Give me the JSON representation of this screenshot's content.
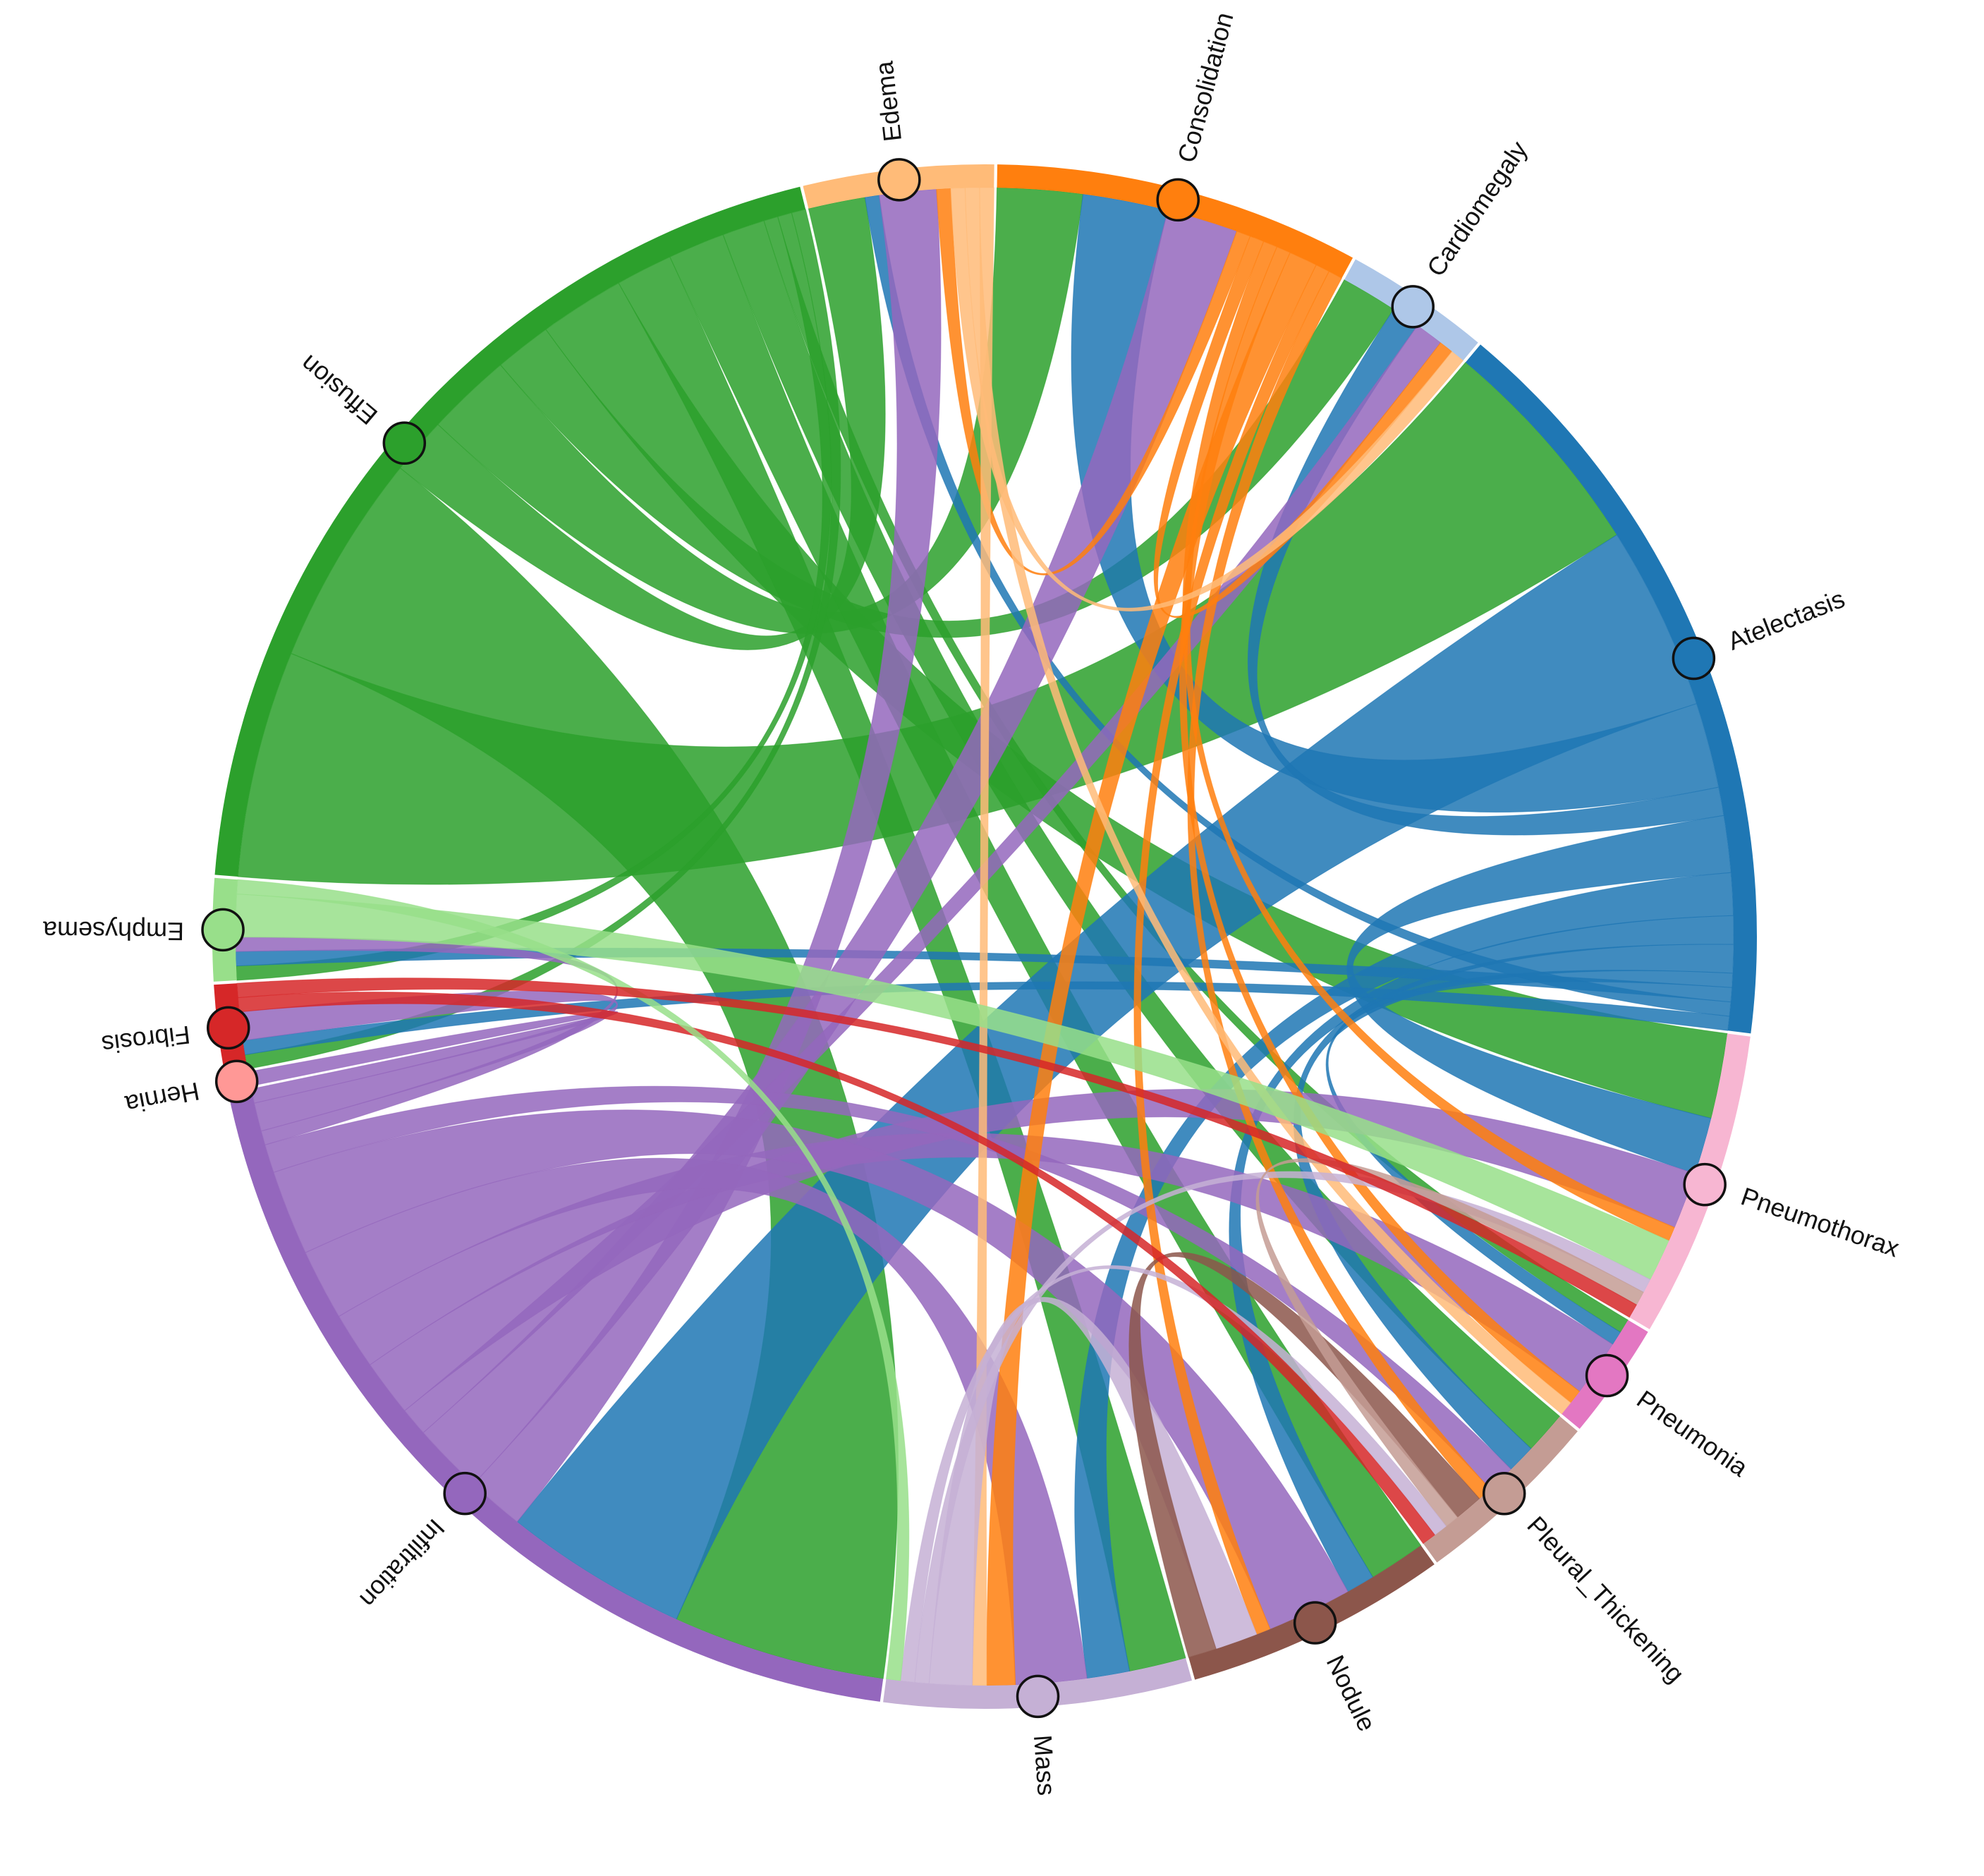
{
  "chart_data": {
    "type": "chord",
    "nodes": [
      {
        "name": "Edema",
        "color": "#ffbb78"
      },
      {
        "name": "Consolidation",
        "color": "#ff7f0e"
      },
      {
        "name": "Cardiomegaly",
        "color": "#aec7e8"
      },
      {
        "name": "Atelectasis",
        "color": "#1f77b4"
      },
      {
        "name": "Pneumothorax",
        "color": "#f7b6d2"
      },
      {
        "name": "Pneumonia",
        "color": "#e377c2"
      },
      {
        "name": "Pleural_Thickening",
        "color": "#c49c94"
      },
      {
        "name": "Nodule",
        "color": "#8c564b"
      },
      {
        "name": "Mass",
        "color": "#c5b0d5"
      },
      {
        "name": "Infiltration",
        "color": "#9467bd"
      },
      {
        "name": "Hernia",
        "color": "#ff9896"
      },
      {
        "name": "Fibrosis",
        "color": "#d62728"
      },
      {
        "name": "Emphysema",
        "color": "#98df8a"
      },
      {
        "name": "Effusion",
        "color": "#2ca02c"
      }
    ],
    "links": [
      {
        "source": "Effusion",
        "target": "Atelectasis",
        "value": 16
      },
      {
        "source": "Effusion",
        "target": "Infiltration",
        "value": 15
      },
      {
        "source": "Effusion",
        "target": "Edema",
        "value": 4
      },
      {
        "source": "Effusion",
        "target": "Consolidation",
        "value": 6
      },
      {
        "source": "Effusion",
        "target": "Cardiomegaly",
        "value": 4
      },
      {
        "source": "Effusion",
        "target": "Pneumothorax",
        "value": 6
      },
      {
        "source": "Effusion",
        "target": "Mass",
        "value": 4
      },
      {
        "source": "Effusion",
        "target": "Nodule",
        "value": 4
      },
      {
        "source": "Effusion",
        "target": "Pleural_Thickening",
        "value": 3
      },
      {
        "source": "Effusion",
        "target": "Pneumonia",
        "value": 1
      },
      {
        "source": "Effusion",
        "target": "Emphysema",
        "value": 1
      },
      {
        "source": "Effusion",
        "target": "Fibrosis",
        "value": 1
      },
      {
        "source": "Atelectasis",
        "target": "Infiltration",
        "value": 13
      },
      {
        "source": "Atelectasis",
        "target": "Consolidation",
        "value": 6
      },
      {
        "source": "Atelectasis",
        "target": "Cardiomegaly",
        "value": 2
      },
      {
        "source": "Atelectasis",
        "target": "Pneumothorax",
        "value": 4
      },
      {
        "source": "Atelectasis",
        "target": "Mass",
        "value": 3
      },
      {
        "source": "Atelectasis",
        "target": "Nodule",
        "value": 2
      },
      {
        "source": "Atelectasis",
        "target": "Pleural_Thickening",
        "value": 2
      },
      {
        "source": "Atelectasis",
        "target": "Pneumonia",
        "value": 1
      },
      {
        "source": "Atelectasis",
        "target": "Emphysema",
        "value": 1
      },
      {
        "source": "Atelectasis",
        "target": "Edema",
        "value": 1
      },
      {
        "source": "Atelectasis",
        "target": "Fibrosis",
        "value": 1
      },
      {
        "source": "Infiltration",
        "target": "Edema",
        "value": 4
      },
      {
        "source": "Infiltration",
        "target": "Consolidation",
        "value": 5
      },
      {
        "source": "Infiltration",
        "target": "Cardiomegaly",
        "value": 2
      },
      {
        "source": "Infiltration",
        "target": "Pneumothorax",
        "value": 4
      },
      {
        "source": "Infiltration",
        "target": "Pneumonia",
        "value": 4
      },
      {
        "source": "Infiltration",
        "target": "Mass",
        "value": 5
      },
      {
        "source": "Infiltration",
        "target": "Nodule",
        "value": 6
      },
      {
        "source": "Infiltration",
        "target": "Pleural_Thickening",
        "value": 2
      },
      {
        "source": "Infiltration",
        "target": "Emphysema",
        "value": 1
      },
      {
        "source": "Infiltration",
        "target": "Fibrosis",
        "value": 2
      },
      {
        "source": "Infiltration",
        "target": "Hernia",
        "value": 1
      },
      {
        "source": "Consolidation",
        "target": "Edema",
        "value": 1
      },
      {
        "source": "Consolidation",
        "target": "Cardiomegaly",
        "value": 1
      },
      {
        "source": "Consolidation",
        "target": "Pneumothorax",
        "value": 1
      },
      {
        "source": "Consolidation",
        "target": "Pneumonia",
        "value": 1
      },
      {
        "source": "Consolidation",
        "target": "Mass",
        "value": 2
      },
      {
        "source": "Consolidation",
        "target": "Nodule",
        "value": 1
      },
      {
        "source": "Consolidation",
        "target": "Pleural_Thickening",
        "value": 1
      },
      {
        "source": "Edema",
        "target": "Cardiomegaly",
        "value": 1
      },
      {
        "source": "Edema",
        "target": "Pneumonia",
        "value": 1
      },
      {
        "source": "Edema",
        "target": "Mass",
        "value": 1
      },
      {
        "source": "Mass",
        "target": "Nodule",
        "value": 3
      },
      {
        "source": "Nodule",
        "target": "Pleural_Thickening",
        "value": 2
      },
      {
        "source": "Emphysema",
        "target": "Pneumothorax",
        "value": 3
      },
      {
        "source": "Mass",
        "target": "Pneumothorax",
        "value": 1
      },
      {
        "source": "Pleural_Thickening",
        "target": "Pneumothorax",
        "value": 1
      },
      {
        "source": "Mass",
        "target": "Pleural_Thickening",
        "value": 1
      },
      {
        "source": "Fibrosis",
        "target": "Pleural_Thickening",
        "value": 1
      },
      {
        "source": "Emphysema",
        "target": "Mass",
        "value": 1
      },
      {
        "source": "Fibrosis",
        "target": "Pneumothorax",
        "value": 1
      }
    ]
  }
}
